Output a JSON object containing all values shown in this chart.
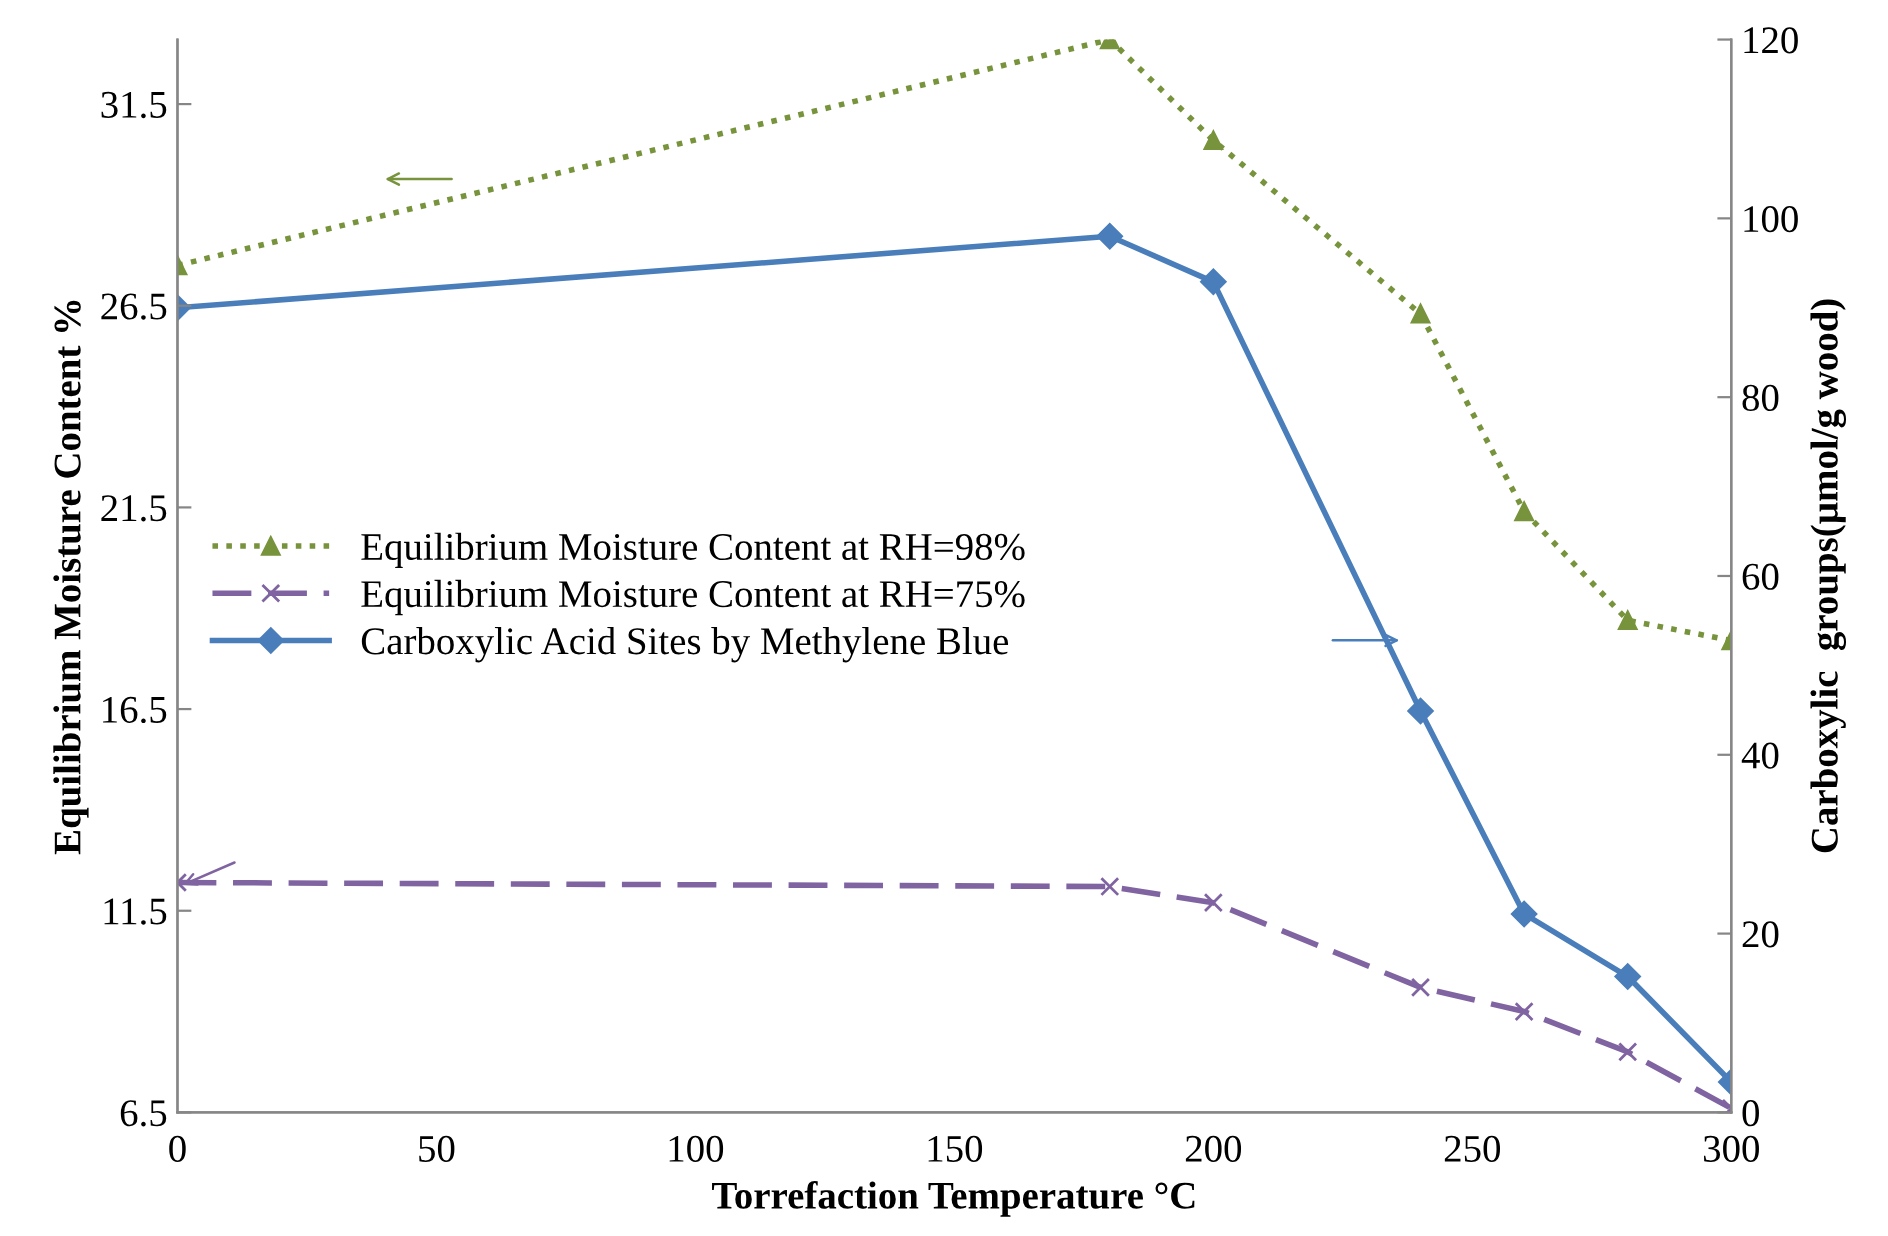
{
  "chart_data": {
    "type": "line",
    "xlabel": "Torrefaction Temperature °C",
    "ylabel": "Equilibrium Moisture Content %",
    "y2label": "Carboxylic  groups(µmol/g wood)",
    "x": [
      0,
      180,
      200,
      240,
      260,
      280,
      300
    ],
    "series": [
      {
        "name": "Equilibrium Moisture Content at RH=98%",
        "color": "#77933c",
        "marker": "triangle",
        "line_style": "dotted",
        "values": [
          27.5,
          33.1,
          30.6,
          26.3,
          21.4,
          18.7,
          18.2
        ]
      },
      {
        "name": "Equilibrium Moisture Content at RH=75%",
        "color": "#8064a2",
        "marker": "cross",
        "line_style": "dashed",
        "values": [
          12.2,
          12.1,
          11.7,
          9.6,
          9.0,
          8.0,
          6.6
        ]
      },
      {
        "name": "Carboxylic Acid Sites by Methylene Blue",
        "color": "#4a7ebb",
        "marker": "diamond",
        "line_style": "solid",
        "axis": "y2",
        "values": [
          90,
          98,
          92.9,
          44.9,
          22.2,
          15.2,
          3.4
        ]
      }
    ],
    "xlim": [
      0,
      300
    ],
    "xticks": [
      0,
      50,
      100,
      150,
      200,
      250,
      300
    ],
    "ylim": [
      6.5,
      33.1
    ],
    "yticks": [
      6.5,
      11.5,
      16.5,
      21.5,
      26.5,
      31.5
    ],
    "y2lim": [
      0,
      120
    ],
    "y2ticks": [
      0,
      20,
      40,
      60,
      80,
      100,
      120
    ],
    "grid": false,
    "legend": "center left"
  }
}
